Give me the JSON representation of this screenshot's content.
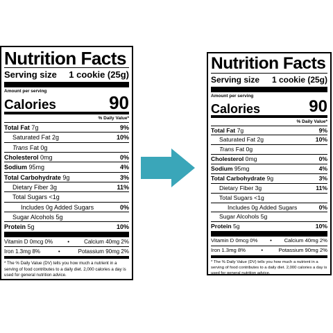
{
  "colors": {
    "arrow": "#3aa6b9"
  },
  "icons": {
    "arrow": "right-arrow-icon"
  },
  "label": {
    "title": "Nutrition Facts",
    "serving_size_label": "Serving size",
    "serving_size_value": "1 cookie (25g)",
    "amount_per_serving": "Amount per serving",
    "calories_label": "Calories",
    "calories_value": "90",
    "daily_value_header": "% Daily Value*",
    "total_fat_label": "Total Fat",
    "total_fat_amount": "7g",
    "total_fat_dv": "9%",
    "saturated_fat": "Saturated Fat 2g",
    "saturated_fat_dv": "10%",
    "trans_fat_italic": "Trans",
    "trans_fat_rest": "Fat 0g",
    "cholesterol_label": "Cholesterol",
    "cholesterol_amount": "0mg",
    "cholesterol_dv": "0%",
    "sodium_label": "Sodium",
    "sodium_amount": "95mg",
    "sodium_dv": "4%",
    "carb_label": "Total Carbohydrate",
    "carb_amount": "9g",
    "carb_dv": "3%",
    "fiber": "Dietary Fiber 3g",
    "fiber_dv": "11%",
    "sugars": "Total Sugars <1g",
    "added_sugars": "Includes 0g Added Sugars",
    "added_sugars_dv": "0%",
    "sugar_alcohols": "Sugar Alcohols 5g",
    "protein_label": "Protein",
    "protein_amount": "5g",
    "protein_dv": "10%",
    "vitamin_d": "Vitamin D 0mcg 0%",
    "calcium": "Calcium 40mg 2%",
    "iron": "Iron 1.3mg 8%",
    "potassium": "Potassium 90mg 2%",
    "bullet": "•",
    "footnote": "* The % Daily Value (DV) tells you how much a nutrient in a serving of food contributes to a daily diet. 2,000 calories a day is used for general nutrition advice."
  }
}
